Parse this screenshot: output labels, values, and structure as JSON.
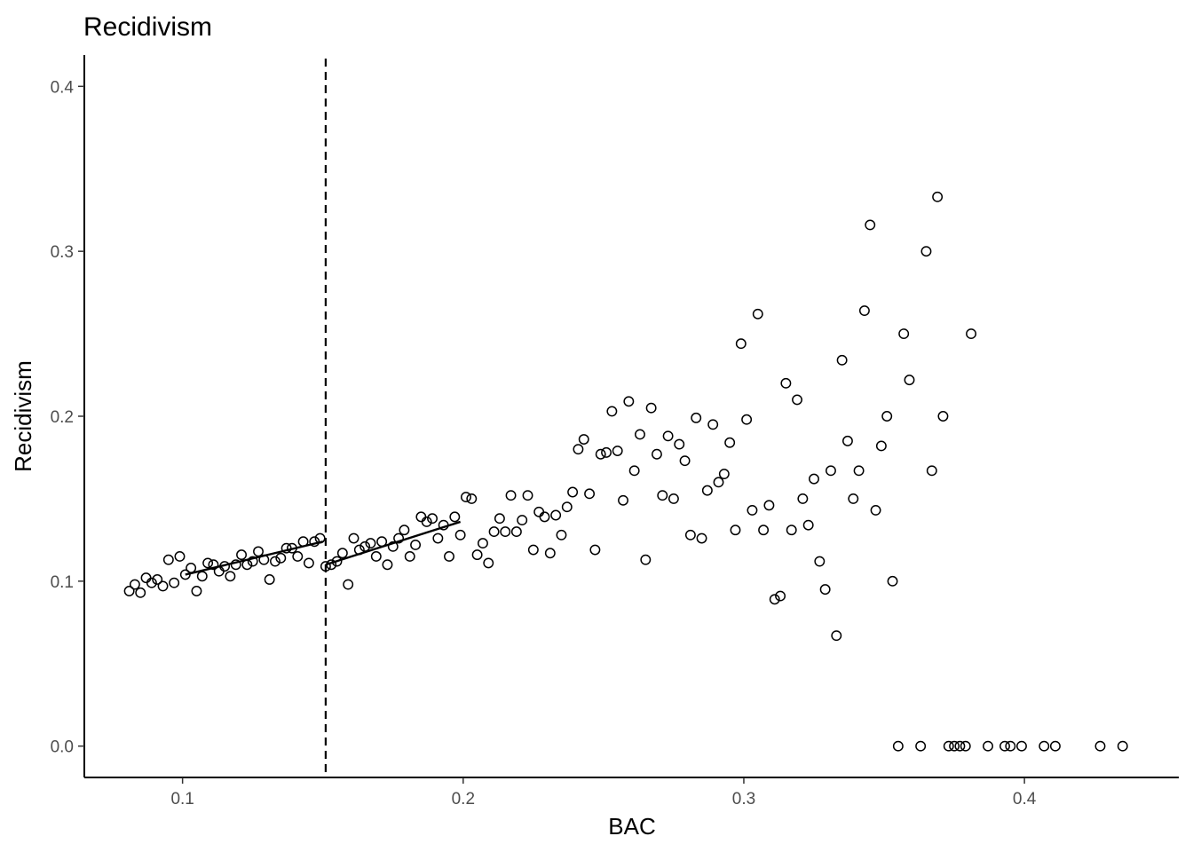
{
  "chart_data": {
    "type": "scatter",
    "title": "Recidivism",
    "xlabel": "BAC",
    "ylabel": "Recidivism",
    "xlim": [
      0.065,
      0.455
    ],
    "ylim": [
      -0.019,
      0.419
    ],
    "x_ticks": [
      0.1,
      0.2,
      0.3,
      0.4
    ],
    "x_tick_labels": [
      "0.1",
      "0.2",
      "0.3",
      "0.4"
    ],
    "y_ticks": [
      0.0,
      0.1,
      0.2,
      0.3,
      0.4
    ],
    "y_tick_labels": [
      "0.0",
      "0.1",
      "0.2",
      "0.3",
      "0.4"
    ],
    "grid": false,
    "cutoff_line": {
      "x": 0.151,
      "style": "dashed"
    },
    "fit_lines": [
      {
        "x": [
          0.101,
          0.15
        ],
        "y": [
          0.104,
          0.124
        ]
      },
      {
        "x": [
          0.151,
          0.199
        ],
        "y": [
          0.11,
          0.136
        ]
      }
    ],
    "points": [
      [
        0.081,
        0.094
      ],
      [
        0.083,
        0.098
      ],
      [
        0.085,
        0.093
      ],
      [
        0.087,
        0.102
      ],
      [
        0.089,
        0.099
      ],
      [
        0.091,
        0.101
      ],
      [
        0.093,
        0.097
      ],
      [
        0.095,
        0.113
      ],
      [
        0.097,
        0.099
      ],
      [
        0.099,
        0.115
      ],
      [
        0.101,
        0.104
      ],
      [
        0.103,
        0.108
      ],
      [
        0.105,
        0.094
      ],
      [
        0.107,
        0.103
      ],
      [
        0.109,
        0.111
      ],
      [
        0.111,
        0.11
      ],
      [
        0.113,
        0.106
      ],
      [
        0.115,
        0.109
      ],
      [
        0.117,
        0.103
      ],
      [
        0.119,
        0.11
      ],
      [
        0.121,
        0.116
      ],
      [
        0.123,
        0.11
      ],
      [
        0.125,
        0.112
      ],
      [
        0.127,
        0.118
      ],
      [
        0.129,
        0.113
      ],
      [
        0.131,
        0.101
      ],
      [
        0.133,
        0.112
      ],
      [
        0.135,
        0.114
      ],
      [
        0.137,
        0.12
      ],
      [
        0.139,
        0.12
      ],
      [
        0.141,
        0.115
      ],
      [
        0.143,
        0.124
      ],
      [
        0.145,
        0.111
      ],
      [
        0.147,
        0.124
      ],
      [
        0.149,
        0.126
      ],
      [
        0.151,
        0.109
      ],
      [
        0.153,
        0.11
      ],
      [
        0.155,
        0.112
      ],
      [
        0.157,
        0.117
      ],
      [
        0.159,
        0.098
      ],
      [
        0.161,
        0.126
      ],
      [
        0.163,
        0.119
      ],
      [
        0.165,
        0.121
      ],
      [
        0.167,
        0.123
      ],
      [
        0.169,
        0.115
      ],
      [
        0.171,
        0.124
      ],
      [
        0.173,
        0.11
      ],
      [
        0.175,
        0.121
      ],
      [
        0.177,
        0.126
      ],
      [
        0.179,
        0.131
      ],
      [
        0.181,
        0.115
      ],
      [
        0.183,
        0.122
      ],
      [
        0.185,
        0.139
      ],
      [
        0.187,
        0.136
      ],
      [
        0.189,
        0.138
      ],
      [
        0.191,
        0.126
      ],
      [
        0.193,
        0.134
      ],
      [
        0.195,
        0.115
      ],
      [
        0.197,
        0.139
      ],
      [
        0.199,
        0.128
      ],
      [
        0.201,
        0.151
      ],
      [
        0.203,
        0.15
      ],
      [
        0.205,
        0.116
      ],
      [
        0.207,
        0.123
      ],
      [
        0.209,
        0.111
      ],
      [
        0.211,
        0.13
      ],
      [
        0.213,
        0.138
      ],
      [
        0.215,
        0.13
      ],
      [
        0.217,
        0.152
      ],
      [
        0.219,
        0.13
      ],
      [
        0.221,
        0.137
      ],
      [
        0.223,
        0.152
      ],
      [
        0.225,
        0.119
      ],
      [
        0.227,
        0.142
      ],
      [
        0.229,
        0.139
      ],
      [
        0.231,
        0.117
      ],
      [
        0.233,
        0.14
      ],
      [
        0.235,
        0.128
      ],
      [
        0.237,
        0.145
      ],
      [
        0.239,
        0.154
      ],
      [
        0.241,
        0.18
      ],
      [
        0.243,
        0.186
      ],
      [
        0.245,
        0.153
      ],
      [
        0.247,
        0.119
      ],
      [
        0.249,
        0.177
      ],
      [
        0.251,
        0.178
      ],
      [
        0.253,
        0.203
      ],
      [
        0.255,
        0.179
      ],
      [
        0.257,
        0.149
      ],
      [
        0.259,
        0.209
      ],
      [
        0.261,
        0.167
      ],
      [
        0.263,
        0.189
      ],
      [
        0.265,
        0.113
      ],
      [
        0.267,
        0.205
      ],
      [
        0.269,
        0.177
      ],
      [
        0.271,
        0.152
      ],
      [
        0.273,
        0.188
      ],
      [
        0.275,
        0.15
      ],
      [
        0.277,
        0.183
      ],
      [
        0.279,
        0.173
      ],
      [
        0.281,
        0.128
      ],
      [
        0.283,
        0.199
      ],
      [
        0.285,
        0.126
      ],
      [
        0.287,
        0.155
      ],
      [
        0.289,
        0.195
      ],
      [
        0.291,
        0.16
      ],
      [
        0.293,
        0.165
      ],
      [
        0.295,
        0.184
      ],
      [
        0.297,
        0.131
      ],
      [
        0.299,
        0.244
      ],
      [
        0.301,
        0.198
      ],
      [
        0.303,
        0.143
      ],
      [
        0.305,
        0.262
      ],
      [
        0.307,
        0.131
      ],
      [
        0.309,
        0.146
      ],
      [
        0.311,
        0.089
      ],
      [
        0.313,
        0.091
      ],
      [
        0.315,
        0.22
      ],
      [
        0.317,
        0.131
      ],
      [
        0.319,
        0.21
      ],
      [
        0.321,
        0.15
      ],
      [
        0.323,
        0.134
      ],
      [
        0.325,
        0.162
      ],
      [
        0.327,
        0.112
      ],
      [
        0.329,
        0.095
      ],
      [
        0.331,
        0.167
      ],
      [
        0.333,
        0.067
      ],
      [
        0.335,
        0.234
      ],
      [
        0.337,
        0.185
      ],
      [
        0.339,
        0.15
      ],
      [
        0.341,
        0.167
      ],
      [
        0.343,
        0.264
      ],
      [
        0.345,
        0.316
      ],
      [
        0.347,
        0.143
      ],
      [
        0.349,
        0.182
      ],
      [
        0.351,
        0.2
      ],
      [
        0.353,
        0.1
      ],
      [
        0.355,
        0.0
      ],
      [
        0.357,
        0.25
      ],
      [
        0.359,
        0.222
      ],
      [
        0.363,
        0.0
      ],
      [
        0.365,
        0.3
      ],
      [
        0.367,
        0.167
      ],
      [
        0.369,
        0.333
      ],
      [
        0.371,
        0.2
      ],
      [
        0.373,
        0.0
      ],
      [
        0.375,
        0.0
      ],
      [
        0.377,
        0.0
      ],
      [
        0.379,
        0.0
      ],
      [
        0.381,
        0.25
      ],
      [
        0.387,
        0.0
      ],
      [
        0.393,
        0.0
      ],
      [
        0.395,
        0.0
      ],
      [
        0.399,
        0.0
      ],
      [
        0.407,
        0.0
      ],
      [
        0.411,
        0.0
      ],
      [
        0.427,
        0.0
      ],
      [
        0.435,
        0.0
      ]
    ]
  }
}
